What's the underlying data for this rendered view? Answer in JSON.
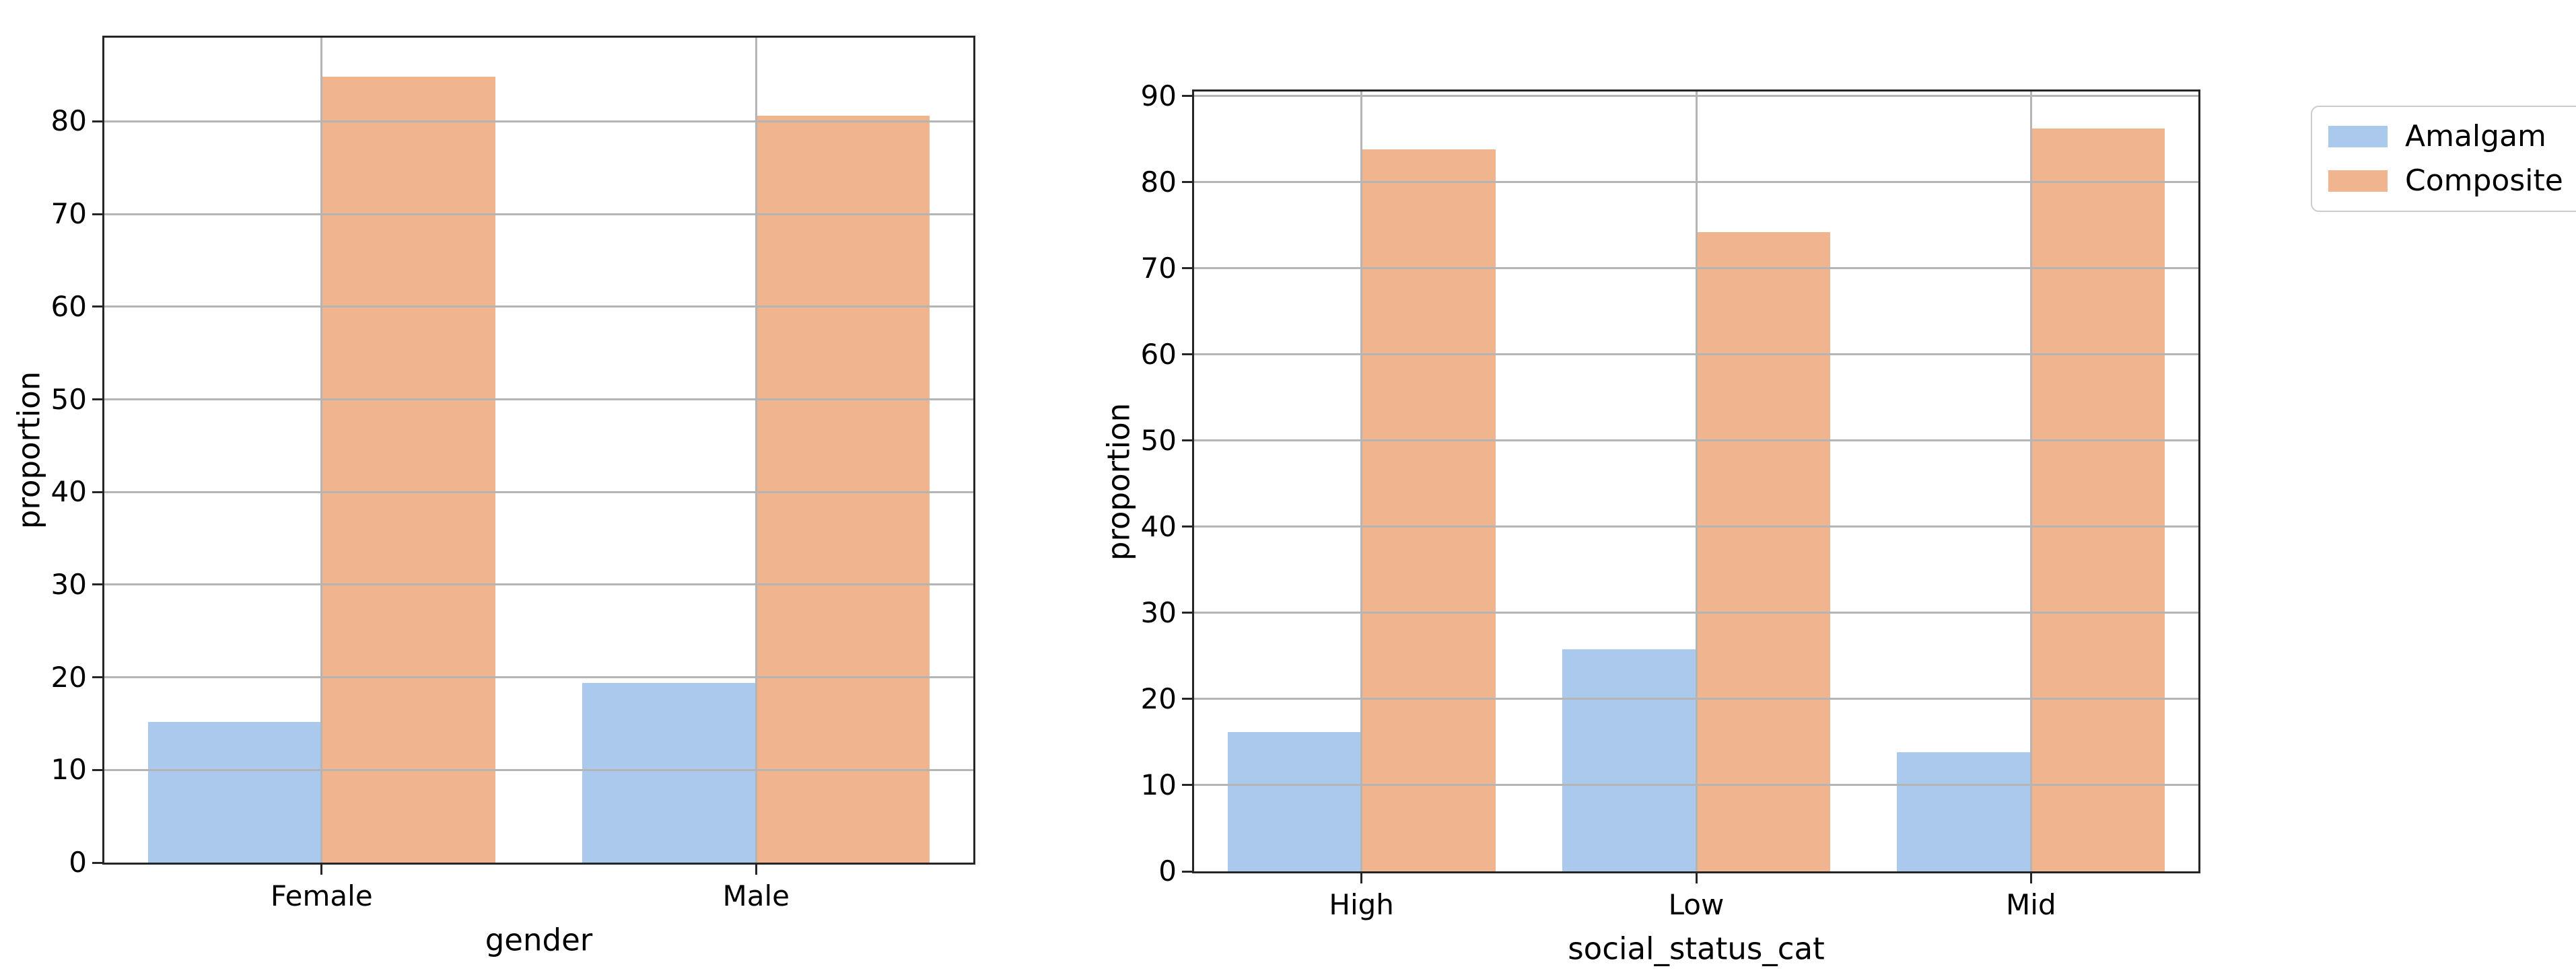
{
  "figure": {
    "background": "#ffffff"
  },
  "colors": {
    "amalgam": "#abc9ec",
    "composite": "#f0b58e",
    "grid": "#b5b5b5",
    "spine": "#262626",
    "text": "#000000",
    "legend_border": "#cbcbcb"
  },
  "legend": {
    "position": "outside-top-right",
    "items": [
      {
        "label": "Amalgam",
        "color": "#abc9ec"
      },
      {
        "label": "Composite",
        "color": "#f0b58e"
      }
    ]
  },
  "chart_data": [
    {
      "type": "bar",
      "title": "",
      "xlabel": "gender",
      "ylabel": "proportion",
      "categories": [
        "Female",
        "Male"
      ],
      "series": [
        {
          "name": "Amalgam",
          "color": "#abc9ec",
          "values": [
            15.2,
            19.4
          ]
        },
        {
          "name": "Composite",
          "color": "#f0b58e",
          "values": [
            84.8,
            80.6
          ]
        }
      ],
      "ylim": [
        0,
        89.04
      ],
      "yticks": [
        0,
        10,
        20,
        30,
        40,
        50,
        60,
        70,
        80
      ],
      "grid": true,
      "grid_above_bars": true,
      "bar_width_fraction": 0.4,
      "legend": false
    },
    {
      "type": "bar",
      "title": "",
      "xlabel": "social_status_cat",
      "ylabel": "proportion",
      "categories": [
        "High",
        "Low",
        "Mid"
      ],
      "series": [
        {
          "name": "Amalgam",
          "color": "#abc9ec",
          "values": [
            16.2,
            25.8,
            13.8
          ]
        },
        {
          "name": "Composite",
          "color": "#f0b58e",
          "values": [
            83.8,
            74.2,
            86.2
          ]
        }
      ],
      "ylim": [
        0,
        90.51
      ],
      "yticks": [
        0,
        10,
        20,
        30,
        40,
        50,
        60,
        70,
        80,
        90
      ],
      "grid": true,
      "grid_above_bars": true,
      "bar_width_fraction": 0.4,
      "legend": true
    }
  ]
}
